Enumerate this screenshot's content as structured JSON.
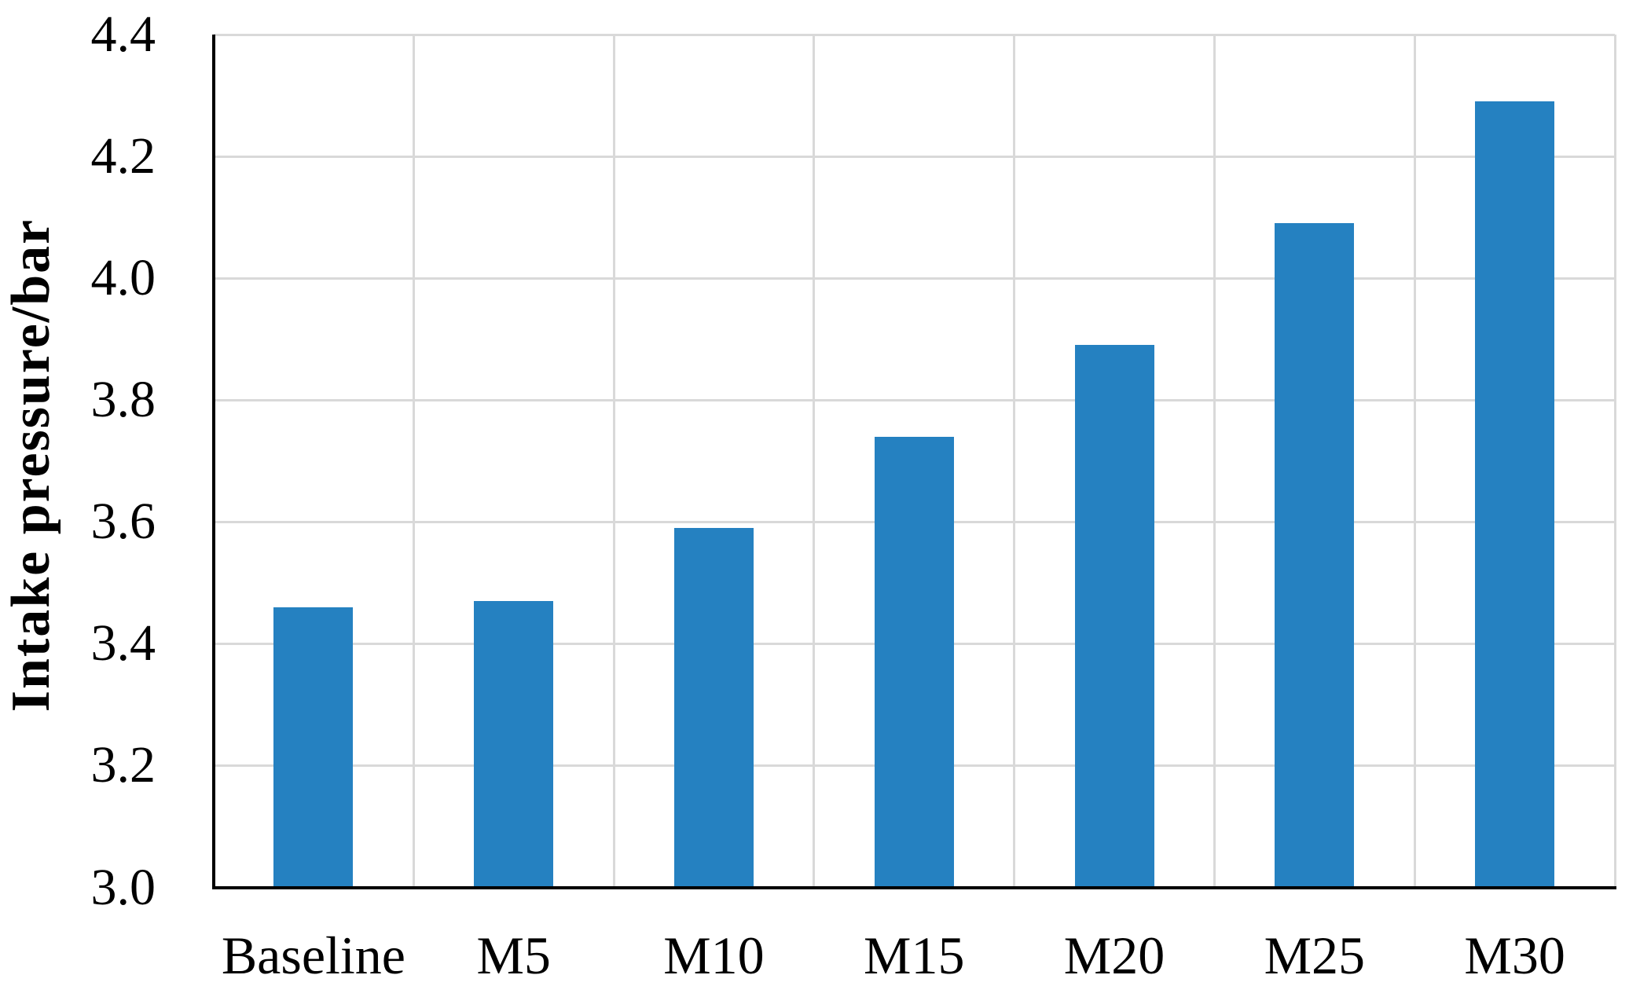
{
  "chart_data": {
    "type": "bar",
    "categories": [
      "Baseline",
      "M5",
      "M10",
      "M15",
      "M20",
      "M25",
      "M30"
    ],
    "values": [
      3.46,
      3.47,
      3.59,
      3.74,
      3.89,
      4.09,
      4.29
    ],
    "title": "",
    "xlabel": "",
    "ylabel": "Intake pressure/bar",
    "ylim": [
      3.0,
      4.4
    ],
    "ytick_step": 0.2,
    "ytick_labels": [
      "3.0",
      "3.2",
      "3.4",
      "3.6",
      "3.8",
      "4.0",
      "4.2",
      "4.4"
    ],
    "grid": true,
    "legend": "none",
    "bar_color": "#2581C1",
    "gridline_color": "#D9D9D9",
    "axis_color": "#000000",
    "text_color": "#000000"
  }
}
